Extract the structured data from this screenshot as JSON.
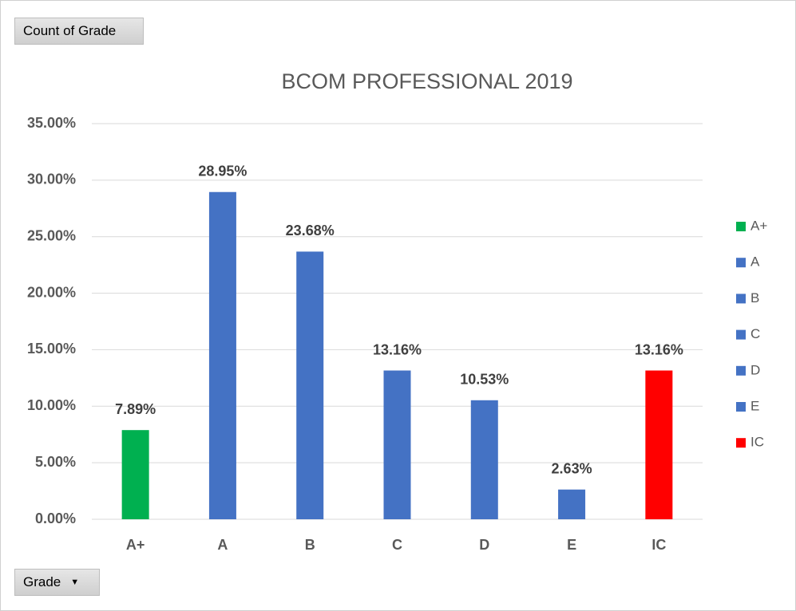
{
  "pivot": {
    "value_field": "Count of Grade",
    "axis_field": "Grade"
  },
  "chart_data": {
    "type": "bar",
    "title": "BCOM PROFESSIONAL  2019",
    "categories": [
      "A+",
      "A",
      "B",
      "C",
      "D",
      "E",
      "IC"
    ],
    "values": [
      7.89,
      28.95,
      23.68,
      13.16,
      10.53,
      2.63,
      13.16
    ],
    "value_labels": [
      "7.89%",
      "28.95%",
      "23.68%",
      "13.16%",
      "10.53%",
      "2.63%",
      "13.16%"
    ],
    "colors": [
      "#00b050",
      "#4472c4",
      "#4472c4",
      "#4472c4",
      "#4472c4",
      "#4472c4",
      "#ff0000"
    ],
    "ylim": [
      0,
      35
    ],
    "yticks": [
      {
        "value": 0,
        "label": "0.00%"
      },
      {
        "value": 5,
        "label": "5.00%"
      },
      {
        "value": 10,
        "label": "10.00%"
      },
      {
        "value": 15,
        "label": "15.00%"
      },
      {
        "value": 20,
        "label": "20.00%"
      },
      {
        "value": 25,
        "label": "25.00%"
      },
      {
        "value": 30,
        "label": "30.00%"
      },
      {
        "value": 35,
        "label": "35.00%"
      }
    ],
    "grid": true,
    "legend": "right"
  }
}
